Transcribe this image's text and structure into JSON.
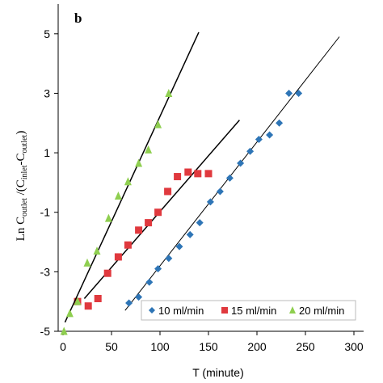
{
  "chart_data": {
    "type": "scatter",
    "panel_label": "b",
    "x_label": "T (minute)",
    "y_label_parts": [
      "Ln C",
      "outlet",
      " /(C",
      "inlet",
      "-C",
      "outlet",
      ")"
    ],
    "xlim": [
      0,
      300
    ],
    "ylim": [
      -5,
      6
    ],
    "xticks": [
      0,
      50,
      100,
      150,
      200,
      250,
      300
    ],
    "yticks": [
      -5,
      -3,
      -1,
      1,
      3,
      5
    ],
    "series": [
      {
        "name": "10 ml/min",
        "color": "#2e75b6",
        "marker": "diamond",
        "x": [
          68,
          78,
          89,
          98,
          109,
          120,
          131,
          141,
          152,
          162,
          172,
          183,
          193,
          202,
          213,
          223,
          233,
          243
        ],
        "values": [
          -4.05,
          -3.85,
          -3.35,
          -2.9,
          -2.55,
          -2.15,
          -1.75,
          -1.35,
          -0.65,
          -0.3,
          0.15,
          0.65,
          1.05,
          1.45,
          1.6,
          2.0,
          3.0,
          3.0
        ],
        "trend_x": [
          64,
          285
        ],
        "trend_y": [
          -4.3,
          4.9
        ]
      },
      {
        "name": "15 ml/min",
        "color": "#e0393e",
        "marker": "square",
        "x": [
          15,
          26,
          36,
          46,
          57,
          67,
          78,
          88,
          98,
          108,
          118,
          129,
          139,
          150
        ],
        "values": [
          -4.0,
          -4.15,
          -3.9,
          -3.05,
          -2.5,
          -2.1,
          -1.6,
          -1.35,
          -1.0,
          -0.3,
          0.2,
          0.35,
          0.3,
          0.3
        ],
        "trend_x": [
          22,
          182
        ],
        "trend_y": [
          -3.9,
          2.1
        ]
      },
      {
        "name": "20 ml/min",
        "color": "#8fcf50",
        "marker": "triangle",
        "x": [
          1,
          7,
          15,
          25,
          35,
          47,
          57,
          67,
          78,
          88,
          98,
          109
        ],
        "values": [
          -5.0,
          -4.4,
          -4.0,
          -2.7,
          -2.3,
          -1.2,
          -0.45,
          0.03,
          0.65,
          1.1,
          1.95,
          3.0
        ],
        "trend_x": [
          2,
          140
        ],
        "trend_y": [
          -4.7,
          5.05
        ]
      }
    ]
  }
}
